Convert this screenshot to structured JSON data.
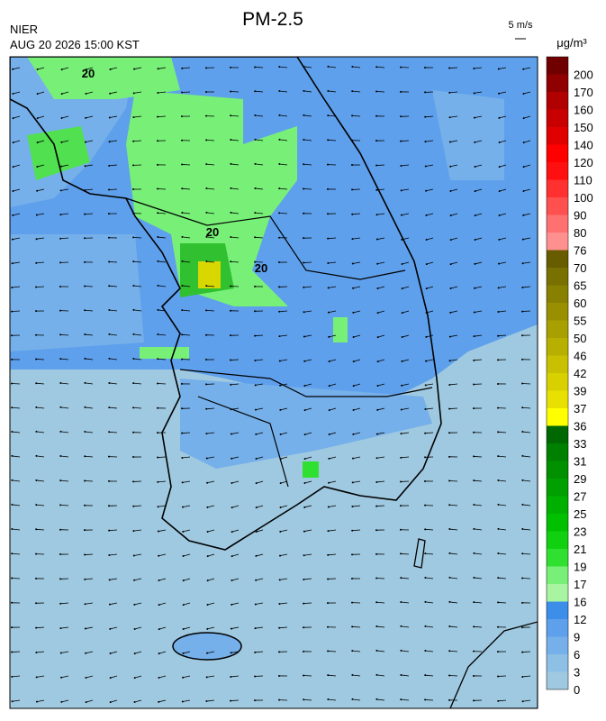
{
  "header": {
    "title": "PM-2.5",
    "agency": "NIER",
    "datetime": "AUG 20 2026 15:00 KST",
    "wind_scale": "5 m/s",
    "unit": "μg/m³"
  },
  "contour_labels": [
    "20",
    "20",
    "20"
  ],
  "legend": {
    "items": [
      {
        "label": 0,
        "color": "#9fc9e0"
      },
      {
        "label": 3,
        "color": "#8ec0e6"
      },
      {
        "label": 6,
        "color": "#76b0ea"
      },
      {
        "label": 9,
        "color": "#5fa0ec"
      },
      {
        "label": 12,
        "color": "#3d8ee8"
      },
      {
        "label": 16,
        "color": "#a8f4a0"
      },
      {
        "label": 17,
        "color": "#78f078"
      },
      {
        "label": 19,
        "color": "#30e030"
      },
      {
        "label": 21,
        "color": "#10d010"
      },
      {
        "label": 23,
        "color": "#00c000"
      },
      {
        "label": 25,
        "color": "#00b000"
      },
      {
        "label": 27,
        "color": "#00a000"
      },
      {
        "label": 29,
        "color": "#009000"
      },
      {
        "label": 31,
        "color": "#008000"
      },
      {
        "label": 33,
        "color": "#006800"
      },
      {
        "label": 36,
        "color": "#ffff00"
      },
      {
        "label": 37,
        "color": "#e8e000"
      },
      {
        "label": 39,
        "color": "#d8d000"
      },
      {
        "label": 42,
        "color": "#c8c000"
      },
      {
        "label": 46,
        "color": "#b8b000"
      },
      {
        "label": 50,
        "color": "#a8a000"
      },
      {
        "label": 55,
        "color": "#989000"
      },
      {
        "label": 60,
        "color": "#888000"
      },
      {
        "label": 65,
        "color": "#787000"
      },
      {
        "label": 70,
        "color": "#685c00"
      },
      {
        "label": 76,
        "color": "#ff9090"
      },
      {
        "label": 80,
        "color": "#ff7070"
      },
      {
        "label": 90,
        "color": "#ff5050"
      },
      {
        "label": 100,
        "color": "#ff3030"
      },
      {
        "label": 110,
        "color": "#ff1010"
      },
      {
        "label": 120,
        "color": "#ff0000"
      },
      {
        "label": 140,
        "color": "#e00000"
      },
      {
        "label": 150,
        "color": "#c80000"
      },
      {
        "label": 160,
        "color": "#b00000"
      },
      {
        "label": 170,
        "color": "#900000"
      },
      {
        "label": 200,
        "color": "#700000"
      }
    ]
  }
}
